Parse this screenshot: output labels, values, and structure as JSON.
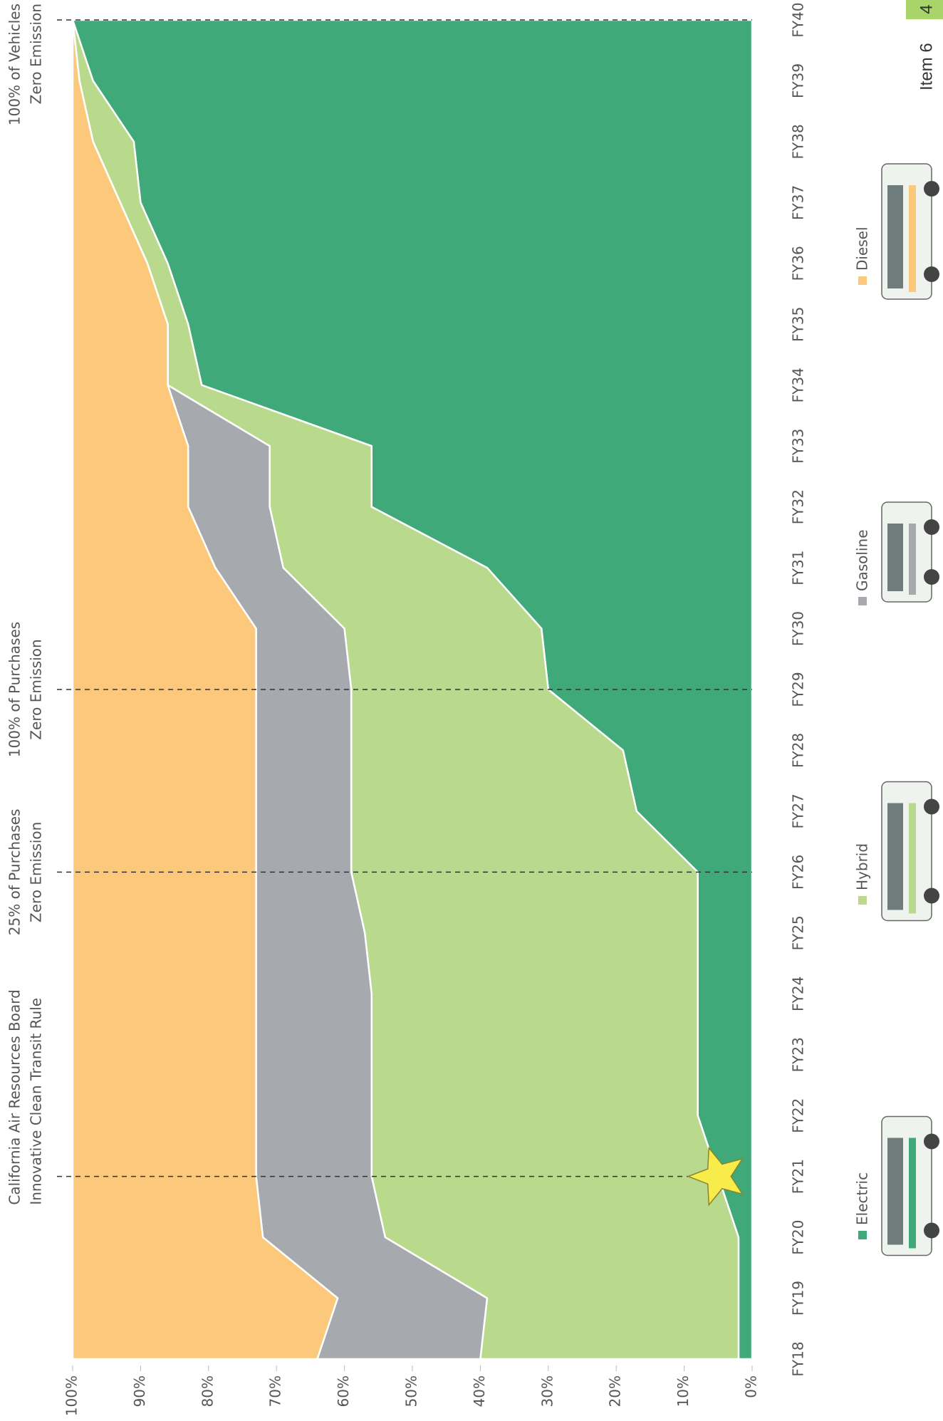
{
  "chart_data": {
    "type": "stacked-area",
    "categories": [
      "FY18",
      "FY19",
      "FY20",
      "FY21",
      "FY22",
      "FY23",
      "FY24",
      "FY25",
      "FY26",
      "FY27",
      "FY28",
      "FY29",
      "FY30",
      "FY31",
      "FY32",
      "FY33",
      "FY34",
      "FY35",
      "FY36",
      "FY37",
      "FY38",
      "FY39",
      "FY40"
    ],
    "series": [
      {
        "name": "Electric",
        "color": "#3fa97a",
        "values": [
          2,
          2,
          2,
          5,
          8,
          8,
          8,
          8,
          8,
          17,
          19,
          30,
          31,
          39,
          56,
          56,
          81,
          83,
          86,
          90,
          91,
          97,
          100
        ]
      },
      {
        "name": "Hybrid",
        "color": "#b9da8c",
        "values": [
          38,
          37,
          52,
          51,
          48,
          48,
          48,
          49,
          51,
          42,
          40,
          29,
          29,
          30,
          15,
          15,
          5,
          3,
          3,
          3,
          6,
          2,
          0
        ]
      },
      {
        "name": "Gasoline",
        "color": "#a6a9ae",
        "values": [
          24,
          22,
          18,
          17,
          17,
          17,
          17,
          16,
          14,
          14,
          14,
          14,
          13,
          10,
          12,
          12,
          0,
          0,
          0,
          0,
          0,
          0,
          0
        ]
      },
      {
        "name": "Diesel",
        "color": "#fcc97c",
        "values": [
          36,
          39,
          28,
          27,
          27,
          27,
          27,
          27,
          27,
          27,
          27,
          27,
          27,
          21,
          17,
          17,
          14,
          14,
          11,
          7,
          3,
          1,
          0
        ]
      }
    ],
    "ylim": [
      0,
      100
    ],
    "yticks": [
      {
        "value": 0,
        "label": "0%"
      },
      {
        "value": 10,
        "label": "10%"
      },
      {
        "value": 20,
        "label": "20%"
      },
      {
        "value": 30,
        "label": "30%"
      },
      {
        "value": 40,
        "label": "40%"
      },
      {
        "value": 50,
        "label": "50%"
      },
      {
        "value": 60,
        "label": "60%"
      },
      {
        "value": 70,
        "label": "70%"
      },
      {
        "value": 80,
        "label": "80%"
      },
      {
        "value": 90,
        "label": "90%"
      },
      {
        "value": 100,
        "label": "100%"
      }
    ],
    "annotations": [
      {
        "category": "FY21",
        "lines": [
          "California Air Resources Board",
          "Innovative Clean Transit Rule"
        ]
      },
      {
        "category": "FY26",
        "lines": [
          "25% of Purchases",
          "Zero Emission"
        ]
      },
      {
        "category": "FY29",
        "lines": [
          "100% of Purchases",
          "Zero Emission"
        ]
      },
      {
        "category": "FY40",
        "lines": [
          "100% of Vehicles",
          "Zero Emission"
        ]
      }
    ],
    "page_tag": "Item 6",
    "page_number": "4"
  }
}
